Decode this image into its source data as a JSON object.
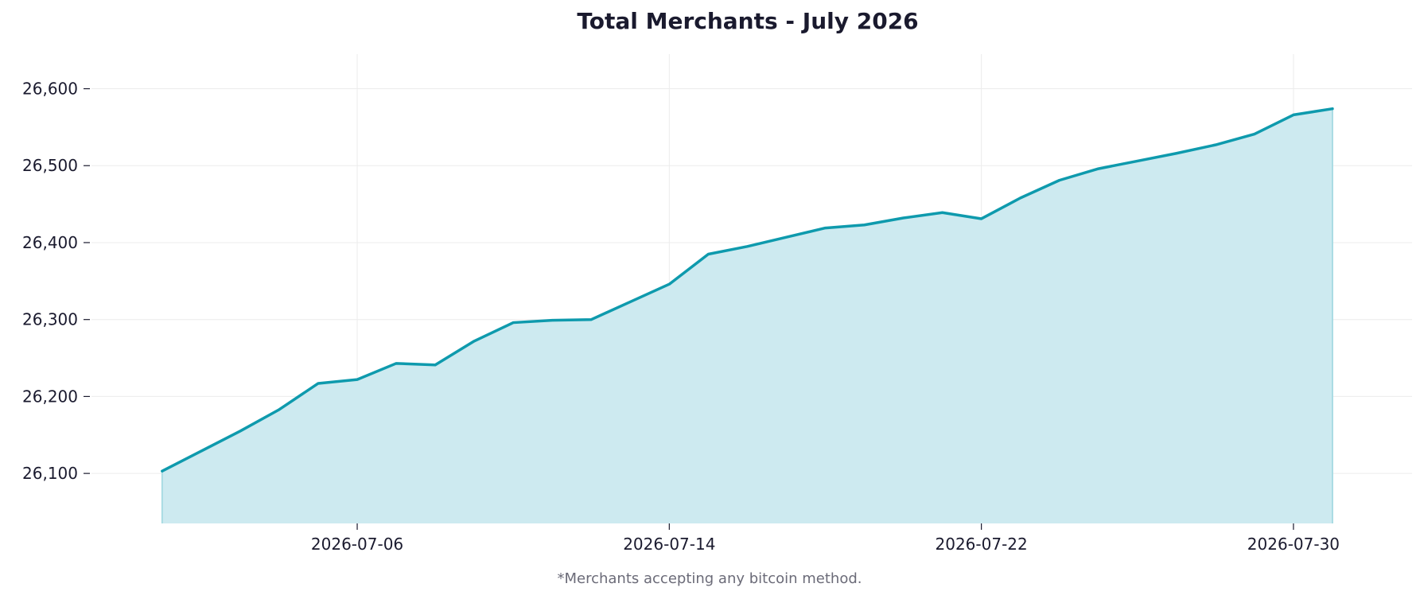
{
  "chart_data": {
    "type": "area",
    "title": "Total Merchants - July 2026",
    "footnote": "*Merchants accepting any bitcoin method.",
    "xlabel": "",
    "ylabel": "",
    "x_start": "2026-07-01",
    "x_end": "2026-07-31",
    "ylim": [
      26035,
      26645
    ],
    "y_ticks": [
      {
        "value": 26100,
        "label": "26,100"
      },
      {
        "value": 26200,
        "label": "26,200"
      },
      {
        "value": 26300,
        "label": "26,300"
      },
      {
        "value": 26400,
        "label": "26,400"
      },
      {
        "value": 26500,
        "label": "26,500"
      },
      {
        "value": 26600,
        "label": "26,600"
      }
    ],
    "x_ticks": [
      {
        "value": "2026-07-06",
        "label": "2026-07-06"
      },
      {
        "value": "2026-07-14",
        "label": "2026-07-14"
      },
      {
        "value": "2026-07-22",
        "label": "2026-07-22"
      },
      {
        "value": "2026-07-30",
        "label": "2026-07-30"
      }
    ],
    "grid": true,
    "legend": "none",
    "series": [
      {
        "color": "#0e9aad",
        "fill_color": "#cdeaf0",
        "x": [
          "2026-07-01",
          "2026-07-02",
          "2026-07-03",
          "2026-07-04",
          "2026-07-05",
          "2026-07-06",
          "2026-07-07",
          "2026-07-08",
          "2026-07-09",
          "2026-07-10",
          "2026-07-11",
          "2026-07-12",
          "2026-07-13",
          "2026-07-14",
          "2026-07-15",
          "2026-07-16",
          "2026-07-17",
          "2026-07-18",
          "2026-07-19",
          "2026-07-20",
          "2026-07-21",
          "2026-07-22",
          "2026-07-23",
          "2026-07-24",
          "2026-07-25",
          "2026-07-26",
          "2026-07-27",
          "2026-07-28",
          "2026-07-29",
          "2026-07-30",
          "2026-07-31"
        ],
        "values": [
          26103,
          26129,
          26155,
          26183,
          26217,
          26222,
          26243,
          26241,
          26272,
          26296,
          26299,
          26300,
          26323,
          26346,
          26385,
          26395,
          26407,
          26419,
          26423,
          26432,
          26439,
          26431,
          26458,
          26481,
          26496,
          26506,
          26516,
          26527,
          26541,
          26566,
          26574
        ]
      }
    ]
  }
}
